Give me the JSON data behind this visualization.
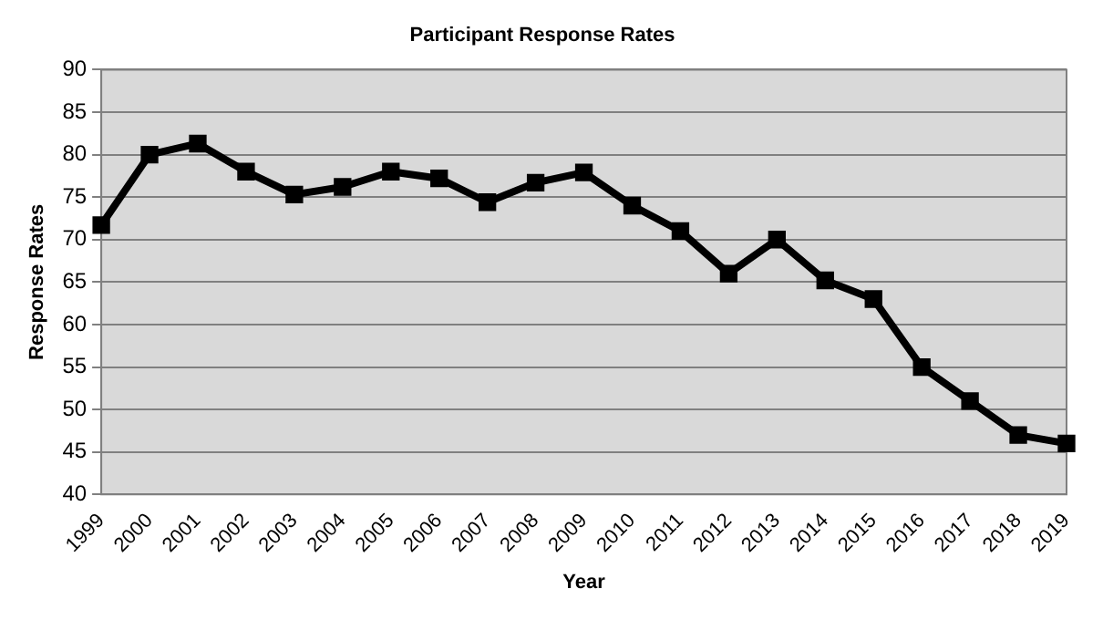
{
  "chart_data": {
    "type": "line",
    "title": "Participant Response Rates",
    "xlabel": "Year",
    "ylabel": "Response Rates",
    "categories": [
      "1999",
      "2000",
      "2001",
      "2002",
      "2003",
      "2004",
      "2005",
      "2006",
      "2007",
      "2008",
      "2009",
      "2010",
      "2011",
      "2012",
      "2013",
      "2014",
      "2015",
      "2016",
      "2017",
      "2018",
      "2019"
    ],
    "series": [
      {
        "color": "#000000",
        "values": [
          71.7,
          80,
          81.3,
          78,
          75.3,
          76.2,
          78,
          77.2,
          74.4,
          76.7,
          77.9,
          74,
          71,
          66,
          70,
          65.2,
          63,
          55,
          51,
          47,
          46
        ]
      }
    ],
    "ylim": [
      40,
      90
    ],
    "yticks": [
      40,
      45,
      50,
      55,
      60,
      65,
      70,
      75,
      80,
      85,
      90
    ],
    "grid": "y",
    "legend": false,
    "marker": "square",
    "line_style": "solid"
  }
}
